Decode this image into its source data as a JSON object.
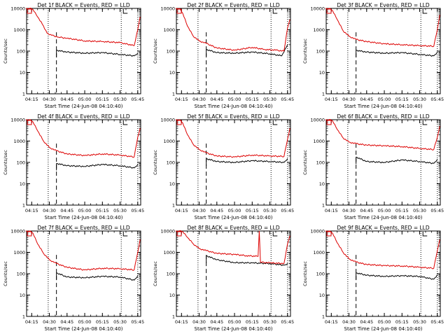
{
  "colors": {
    "background": "#ffffff",
    "axes": "#000000",
    "events": "#000000",
    "lld": "#dd0000"
  },
  "chart_data": [
    {
      "type": "line",
      "title": "Det 1f BLACK = Events, RED = LLD",
      "xlabel": "Start Time (24-Jun-08 04:10:40)",
      "ylabel": "Counts/sec",
      "yscale": "log",
      "ylim": [
        1,
        10000
      ],
      "xlim": [
        "04:10:40",
        "05:47:30"
      ],
      "x_ticks": [
        "04:15",
        "04:30",
        "04:45",
        "05:00",
        "05:15",
        "05:30",
        "05:45"
      ],
      "y_ticks": [
        "1",
        "10",
        "100",
        "1000",
        "10000"
      ],
      "dotted_lines": [
        "04:29",
        "05:31",
        "05:45"
      ],
      "dashed_lines": [
        "04:36"
      ],
      "series": [
        {
          "name": "Events",
          "x": [
            "04:36",
            "04:45",
            "05:00",
            "05:15",
            "05:30",
            "05:42",
            "05:45"
          ],
          "y": [
            110,
            90,
            80,
            85,
            70,
            60,
            80
          ],
          "start_marker": "04:36",
          "end_marker": "05:45"
        },
        {
          "name": "LLD",
          "x": [
            "04:10",
            "04:13",
            "04:16",
            "04:20",
            "04:25",
            "04:28",
            "04:32",
            "04:38",
            "04:45",
            "05:00",
            "05:15",
            "05:30",
            "05:42",
            "05:45",
            "05:47"
          ],
          "y": [
            10000,
            10000,
            9000,
            4000,
            1500,
            700,
            550,
            450,
            400,
            300,
            280,
            250,
            180,
            1000,
            4000
          ]
        }
      ]
    },
    {
      "type": "line",
      "title": "Det 2f BLACK = Events, RED = LLD",
      "xlabel": "Start Time (24-Jun-08 04:10:40)",
      "ylabel": "Counts/sec",
      "yscale": "log",
      "ylim": [
        1,
        10000
      ],
      "xlim": [
        "04:10:40",
        "05:47:30"
      ],
      "x_ticks": [
        "04:15",
        "04:30",
        "04:45",
        "05:00",
        "05:15",
        "05:30",
        "05:45"
      ],
      "y_ticks": [
        "1",
        "10",
        "100",
        "1000",
        "10000"
      ],
      "dotted_lines": [
        "04:29",
        "05:31",
        "05:45"
      ],
      "dashed_lines": [
        "04:36"
      ],
      "series": [
        {
          "name": "Events",
          "x": [
            "04:36",
            "04:45",
            "05:00",
            "05:15",
            "05:30",
            "05:40",
            "05:45"
          ],
          "y": [
            120,
            85,
            80,
            90,
            75,
            60,
            200
          ],
          "start_marker": "04:36",
          "end_marker": "05:45"
        },
        {
          "name": "LLD",
          "x": [
            "04:10",
            "04:13",
            "04:16",
            "04:20",
            "04:25",
            "04:30",
            "04:36",
            "04:45",
            "05:00",
            "05:15",
            "05:25",
            "05:35",
            "05:42",
            "05:45",
            "05:47"
          ],
          "y": [
            10000,
            10000,
            6000,
            1500,
            500,
            300,
            230,
            140,
            110,
            150,
            120,
            110,
            100,
            1200,
            3000
          ]
        }
      ]
    },
    {
      "type": "line",
      "title": "Det 3f BLACK = Events, RED = LLD",
      "xlabel": "Start Time (24-Jun-08 04:10:40)",
      "ylabel": "Counts/sec",
      "yscale": "log",
      "ylim": [
        1,
        10000
      ],
      "xlim": [
        "04:10:40",
        "05:47:30"
      ],
      "x_ticks": [
        "04:15",
        "04:30",
        "04:45",
        "05:00",
        "05:15",
        "05:30",
        "05:45"
      ],
      "y_ticks": [
        "1",
        "10",
        "100",
        "1000",
        "10000"
      ],
      "dotted_lines": [
        "04:29",
        "05:31",
        "05:45"
      ],
      "dashed_lines": [
        "04:36"
      ],
      "series": [
        {
          "name": "Events",
          "x": [
            "04:36",
            "04:45",
            "05:00",
            "05:15",
            "05:30",
            "05:42",
            "05:45"
          ],
          "y": [
            110,
            90,
            80,
            85,
            70,
            60,
            90
          ],
          "start_marker": "04:36",
          "end_marker": "05:45"
        },
        {
          "name": "LLD",
          "x": [
            "04:10",
            "04:13",
            "04:16",
            "04:20",
            "04:25",
            "04:30",
            "04:36",
            "04:45",
            "05:00",
            "05:15",
            "05:30",
            "05:42",
            "05:45",
            "05:47"
          ],
          "y": [
            10000,
            10000,
            8000,
            3000,
            900,
            500,
            350,
            280,
            220,
            200,
            180,
            170,
            1000,
            5000
          ]
        }
      ]
    },
    {
      "type": "line",
      "title": "Det 4f BLACK = Events, RED = LLD",
      "xlabel": "Start Time (24-Jun-08 04:10:40)",
      "ylabel": "Counts/sec",
      "yscale": "log",
      "ylim": [
        1,
        10000
      ],
      "xlim": [
        "04:10:40",
        "05:47:30"
      ],
      "x_ticks": [
        "04:15",
        "04:30",
        "04:45",
        "05:00",
        "05:15",
        "05:30",
        "05:45"
      ],
      "y_ticks": [
        "1",
        "10",
        "100",
        "1000",
        "10000"
      ],
      "dotted_lines": [
        "04:29",
        "05:31",
        "05:45"
      ],
      "dashed_lines": [
        "04:36"
      ],
      "series": [
        {
          "name": "Events",
          "x": [
            "04:36",
            "04:45",
            "05:00",
            "05:15",
            "05:30",
            "05:42",
            "05:45"
          ],
          "y": [
            90,
            70,
            65,
            80,
            70,
            55,
            80
          ],
          "start_marker": "04:36",
          "end_marker": "05:45"
        },
        {
          "name": "LLD",
          "x": [
            "04:10",
            "04:13",
            "04:16",
            "04:20",
            "04:25",
            "04:30",
            "04:36",
            "04:45",
            "05:00",
            "05:15",
            "05:30",
            "05:42",
            "05:45",
            "05:47"
          ],
          "y": [
            10000,
            10000,
            8000,
            3000,
            1000,
            500,
            350,
            250,
            210,
            250,
            220,
            180,
            1500,
            4000
          ]
        }
      ]
    },
    {
      "type": "line",
      "title": "Det 5f BLACK = Events, RED = LLD",
      "xlabel": "Start Time (24-Jun-08 04:10:40)",
      "ylabel": "Counts/sec",
      "yscale": "log",
      "ylim": [
        1,
        10000
      ],
      "xlim": [
        "04:10:40",
        "05:47:30"
      ],
      "x_ticks": [
        "04:15",
        "04:30",
        "04:45",
        "05:00",
        "05:15",
        "05:30",
        "05:45"
      ],
      "y_ticks": [
        "1",
        "10",
        "100",
        "1000",
        "10000"
      ],
      "dotted_lines": [
        "04:29",
        "05:31",
        "05:45"
      ],
      "dashed_lines": [
        "04:36"
      ],
      "series": [
        {
          "name": "Events",
          "x": [
            "04:36",
            "04:45",
            "05:00",
            "05:15",
            "05:30",
            "05:42",
            "05:45"
          ],
          "y": [
            150,
            110,
            100,
            120,
            110,
            100,
            150
          ],
          "start_marker": "04:36",
          "end_marker": "05:45"
        },
        {
          "name": "LLD",
          "x": [
            "04:10",
            "04:13",
            "04:16",
            "04:20",
            "04:25",
            "04:30",
            "04:36",
            "04:45",
            "05:00",
            "05:15",
            "05:30",
            "05:42",
            "05:45",
            "05:47"
          ],
          "y": [
            10000,
            10000,
            7000,
            2000,
            700,
            400,
            280,
            200,
            180,
            220,
            200,
            190,
            1200,
            4000
          ]
        }
      ]
    },
    {
      "type": "line",
      "title": "Det 6f BLACK = Events, RED = LLD",
      "xlabel": "Start Time (24-Jun-08 04:10:40)",
      "ylabel": "Counts/sec",
      "yscale": "log",
      "ylim": [
        1,
        10000
      ],
      "xlim": [
        "04:10:40",
        "05:47:30"
      ],
      "x_ticks": [
        "04:15",
        "04:30",
        "04:45",
        "05:00",
        "05:15",
        "05:30",
        "05:45"
      ],
      "y_ticks": [
        "1",
        "10",
        "100",
        "1000",
        "10000"
      ],
      "dotted_lines": [
        "04:29",
        "05:31",
        "05:45"
      ],
      "dashed_lines": [
        "04:36"
      ],
      "series": [
        {
          "name": "Events",
          "x": [
            "04:36",
            "04:45",
            "05:00",
            "05:15",
            "05:30",
            "05:42",
            "05:45"
          ],
          "y": [
            180,
            110,
            100,
            130,
            110,
            90,
            140
          ],
          "start_marker": "04:36",
          "end_marker": "05:45"
        },
        {
          "name": "LLD",
          "x": [
            "04:10",
            "04:13",
            "04:16",
            "04:20",
            "04:25",
            "04:30",
            "04:36",
            "04:45",
            "05:00",
            "05:15",
            "05:30",
            "05:42",
            "05:45",
            "05:47"
          ],
          "y": [
            10000,
            10000,
            9000,
            3500,
            1400,
            900,
            750,
            650,
            600,
            550,
            450,
            400,
            1500,
            5000
          ]
        }
      ]
    },
    {
      "type": "line",
      "title": "Det 7f BLACK = Events, RED = LLD",
      "xlabel": "Start Time (24-Jun-08 04:10:40)",
      "ylabel": "Counts/sec",
      "yscale": "log",
      "ylim": [
        1,
        10000
      ],
      "xlim": [
        "04:10:40",
        "05:47:30"
      ],
      "x_ticks": [
        "04:15",
        "04:30",
        "04:45",
        "05:00",
        "05:15",
        "05:30",
        "05:45"
      ],
      "y_ticks": [
        "1",
        "10",
        "100",
        "1000",
        "10000"
      ],
      "dotted_lines": [
        "04:29",
        "05:31",
        "05:45"
      ],
      "dashed_lines": [
        "04:36"
      ],
      "series": [
        {
          "name": "Events",
          "x": [
            "04:36",
            "04:45",
            "05:00",
            "05:15",
            "05:30",
            "05:42",
            "05:45"
          ],
          "y": [
            110,
            70,
            65,
            75,
            70,
            50,
            80
          ],
          "start_marker": "04:36",
          "end_marker": "05:45"
        },
        {
          "name": "LLD",
          "x": [
            "04:10",
            "04:13",
            "04:16",
            "04:20",
            "04:25",
            "04:30",
            "04:36",
            "04:45",
            "05:00",
            "05:15",
            "05:30",
            "05:42",
            "05:45",
            "05:47"
          ],
          "y": [
            10000,
            10000,
            8000,
            2500,
            900,
            450,
            300,
            200,
            150,
            180,
            170,
            150,
            1000,
            4000
          ]
        }
      ]
    },
    {
      "type": "line",
      "title": "Det 8f BLACK = Events, RED = LLD",
      "xlabel": "Start Time (24-Jun-08 04:10:40)",
      "ylabel": "Counts/sec",
      "yscale": "log",
      "ylim": [
        1,
        10000
      ],
      "xlim": [
        "04:10:40",
        "05:47:30"
      ],
      "x_ticks": [
        "04:15",
        "04:30",
        "04:45",
        "05:00",
        "05:15",
        "05:30",
        "05:45"
      ],
      "y_ticks": [
        "1",
        "10",
        "100",
        "1000",
        "10000"
      ],
      "dotted_lines": [
        "04:29",
        "05:31",
        "05:45"
      ],
      "dashed_lines": [
        "04:36"
      ],
      "series": [
        {
          "name": "Events",
          "x": [
            "04:36",
            "04:45",
            "05:00",
            "05:15",
            "05:30",
            "05:42",
            "05:45"
          ],
          "y": [
            700,
            450,
            330,
            320,
            300,
            250,
            300
          ],
          "start_marker": "04:36",
          "end_marker": "05:45"
        },
        {
          "name": "LLD",
          "x": [
            "04:10",
            "04:13",
            "04:16",
            "04:20",
            "04:25",
            "04:30",
            "04:36",
            "04:45",
            "05:00",
            "05:10",
            "05:20",
            "05:21",
            "05:22",
            "05:30",
            "05:42",
            "05:45",
            "05:47"
          ],
          "y": [
            10000,
            10000,
            9500,
            5000,
            2500,
            1500,
            1200,
            900,
            800,
            700,
            650,
            10000,
            350,
            320,
            300,
            2500,
            6000
          ]
        }
      ]
    },
    {
      "type": "line",
      "title": "Det 9f BLACK = Events, RED = LLD",
      "xlabel": "Start Time (24-Jun-08 04:10:40)",
      "ylabel": "Counts/sec",
      "yscale": "log",
      "ylim": [
        1,
        10000
      ],
      "xlim": [
        "04:10:40",
        "05:47:30"
      ],
      "x_ticks": [
        "04:15",
        "04:30",
        "04:45",
        "05:00",
        "05:15",
        "05:30",
        "05:45"
      ],
      "y_ticks": [
        "1",
        "10",
        "100",
        "1000",
        "10000"
      ],
      "dotted_lines": [
        "04:29",
        "05:31",
        "05:45"
      ],
      "dashed_lines": [
        "04:36"
      ],
      "series": [
        {
          "name": "Events",
          "x": [
            "04:36",
            "04:45",
            "05:00",
            "05:15",
            "05:30",
            "05:42",
            "05:45"
          ],
          "y": [
            110,
            85,
            75,
            80,
            75,
            55,
            90
          ],
          "start_marker": "04:36",
          "end_marker": "05:45"
        },
        {
          "name": "LLD",
          "x": [
            "04:10",
            "04:13",
            "04:16",
            "04:20",
            "04:25",
            "04:30",
            "04:36",
            "04:45",
            "05:00",
            "05:15",
            "05:30",
            "05:42",
            "05:45",
            "05:47"
          ],
          "y": [
            10000,
            10000,
            8000,
            2800,
            1000,
            500,
            350,
            270,
            240,
            230,
            200,
            180,
            1200,
            4000
          ]
        }
      ]
    }
  ]
}
